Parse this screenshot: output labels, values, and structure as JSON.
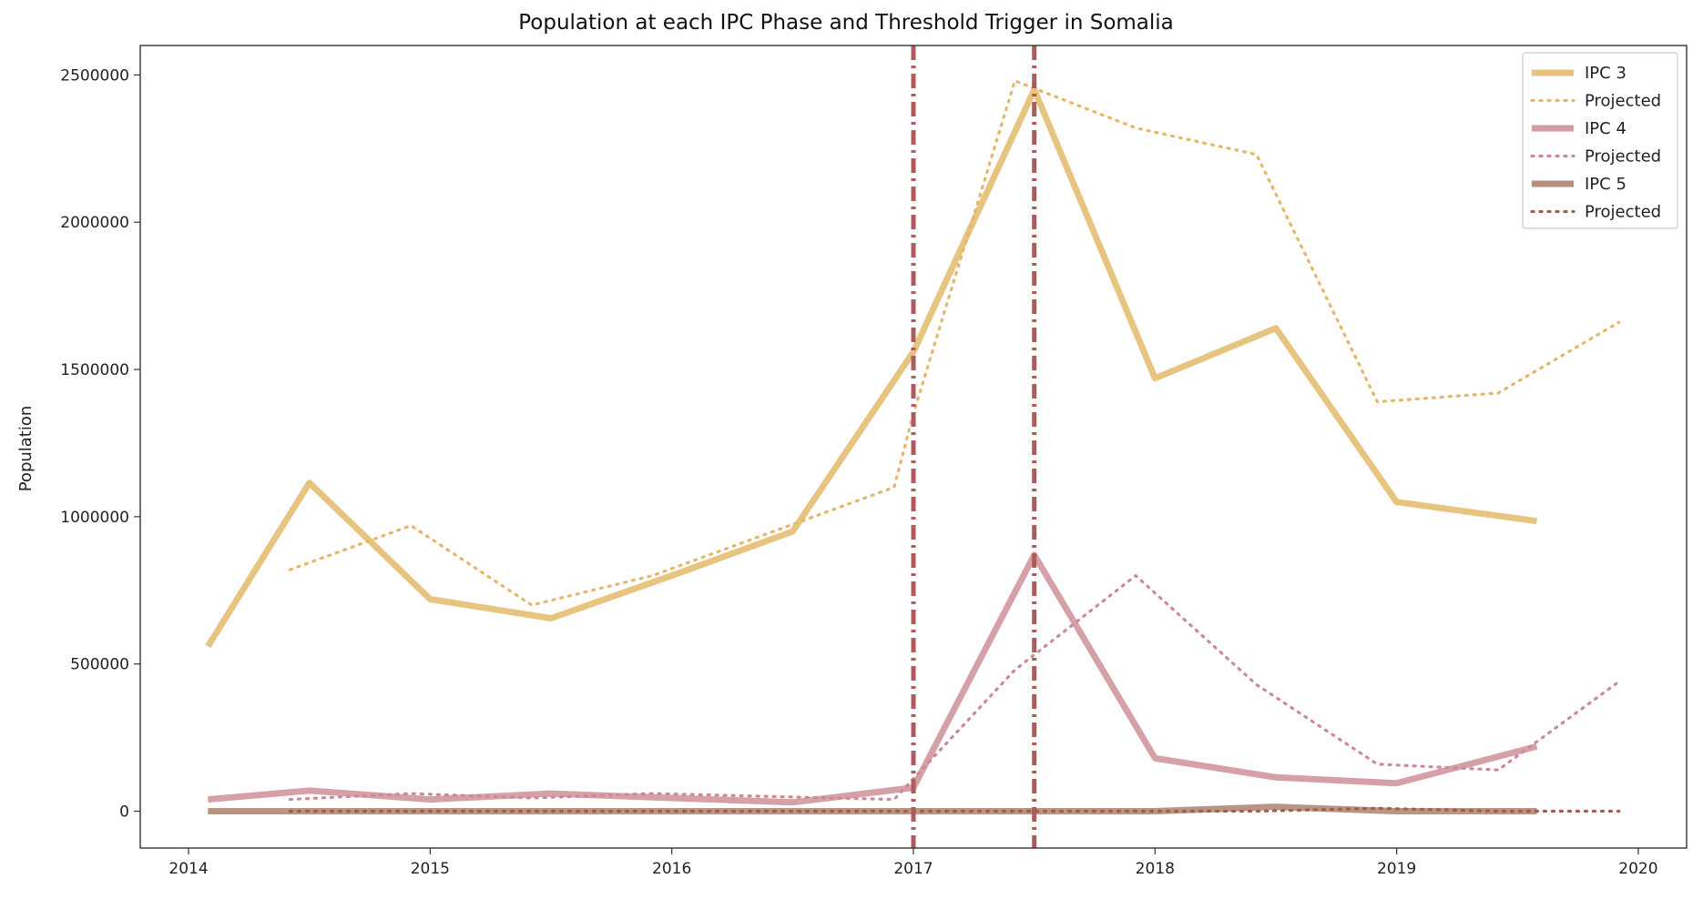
{
  "chart_data": {
    "type": "line",
    "title": "Population at each IPC Phase and Threshold Trigger in Somalia",
    "xlabel": "",
    "ylabel": "Population",
    "xlim": [
      2013.8,
      2020.2
    ],
    "ylim": [
      -125000,
      2600000
    ],
    "x_ticks": [
      2014,
      2015,
      2016,
      2017,
      2018,
      2019,
      2020
    ],
    "x_tick_labels": [
      "2014",
      "2015",
      "2016",
      "2017",
      "2018",
      "2019",
      "2020"
    ],
    "y_ticks": [
      0,
      500000,
      1000000,
      1500000,
      2000000,
      2500000
    ],
    "y_tick_labels": [
      "0",
      "500000",
      "1000000",
      "1500000",
      "2000000",
      "2500000"
    ],
    "grid": false,
    "legend_position": "top-right",
    "series": [
      {
        "name": "IPC 3",
        "style": "solid",
        "color": "#e6c27a",
        "x": [
          2014.08,
          2014.5,
          2015.0,
          2015.5,
          2016.0,
          2016.5,
          2017.0,
          2017.5,
          2018.0,
          2018.5,
          2019.0,
          2019.58
        ],
        "y": [
          560000,
          1115000,
          720000,
          655000,
          800000,
          950000,
          1560000,
          2450000,
          1470000,
          1640000,
          1050000,
          985000
        ]
      },
      {
        "name": "Projected",
        "style": "dotted",
        "color": "#e6b66a",
        "x": [
          2014.42,
          2014.92,
          2015.42,
          2015.92,
          2016.42,
          2016.92,
          2017.0,
          2017.42,
          2017.92,
          2018.42,
          2018.92,
          2019.42,
          2019.92
        ],
        "y": [
          820000,
          970000,
          700000,
          800000,
          950000,
          1100000,
          1350000,
          2480000,
          2320000,
          2230000,
          1390000,
          1420000,
          1660000
        ]
      },
      {
        "name": "IPC 4",
        "style": "solid",
        "color": "#d39ca2",
        "x": [
          2014.08,
          2014.5,
          2015.0,
          2015.5,
          2016.0,
          2016.5,
          2017.0,
          2017.5,
          2018.0,
          2018.5,
          2019.0,
          2019.58
        ],
        "y": [
          40000,
          70000,
          40000,
          60000,
          45000,
          30000,
          80000,
          870000,
          180000,
          115000,
          95000,
          220000
        ]
      },
      {
        "name": "Projected",
        "style": "dotted",
        "color": "#cc8a98",
        "x": [
          2014.42,
          2014.92,
          2015.42,
          2015.92,
          2016.42,
          2016.92,
          2017.42,
          2017.92,
          2018.42,
          2018.92,
          2019.42,
          2019.92
        ],
        "y": [
          40000,
          60000,
          45000,
          60000,
          50000,
          40000,
          480000,
          800000,
          430000,
          160000,
          140000,
          440000
        ]
      },
      {
        "name": "IPC 5",
        "style": "solid",
        "color": "#b48f7d",
        "x": [
          2014.08,
          2014.5,
          2015.0,
          2015.5,
          2016.0,
          2016.5,
          2017.0,
          2017.5,
          2018.0,
          2018.5,
          2019.0,
          2019.58
        ],
        "y": [
          0,
          0,
          0,
          0,
          0,
          0,
          0,
          0,
          0,
          15000,
          0,
          0
        ]
      },
      {
        "name": "Projected",
        "style": "dotted",
        "color": "#a0604c",
        "x": [
          2014.42,
          2014.92,
          2015.42,
          2015.92,
          2016.42,
          2016.92,
          2017.42,
          2017.92,
          2018.42,
          2018.92,
          2019.42,
          2019.92
        ],
        "y": [
          0,
          0,
          0,
          0,
          0,
          0,
          0,
          0,
          0,
          10000,
          0,
          0
        ]
      }
    ],
    "vertical_lines": [
      {
        "x": 2017.0,
        "style": "dashdot",
        "color": "#b05a5c"
      },
      {
        "x": 2017.5,
        "style": "dashdot",
        "color": "#b05a5c"
      }
    ]
  }
}
